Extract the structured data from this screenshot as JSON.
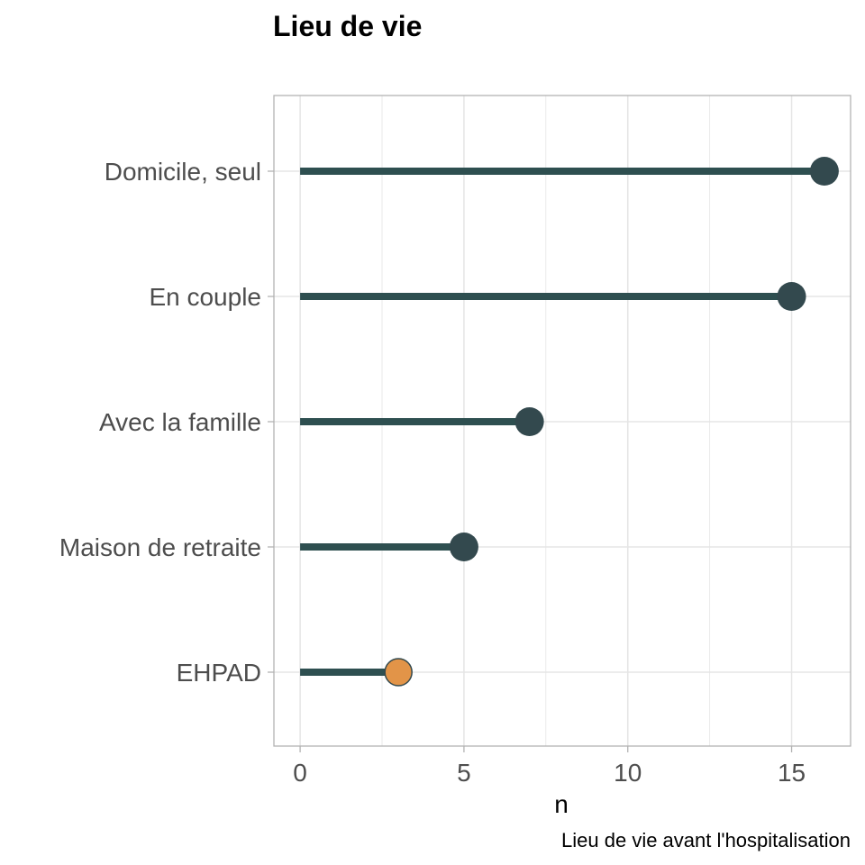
{
  "chart_data": {
    "type": "lollipop",
    "title": "Lieu de vie",
    "xlabel": "n",
    "ylabel": "",
    "caption": "Lieu de vie avant l'hospitalisation",
    "categories": [
      "Domicile, seul",
      "En couple",
      "Avec la famille",
      "Maison de retraite",
      "EHPAD"
    ],
    "values": [
      16,
      15,
      7,
      5,
      3
    ],
    "xlim": [
      -0.8,
      16.8
    ],
    "x_ticks": [
      {
        "value": 0,
        "label": "0"
      },
      {
        "value": 5,
        "label": "5"
      },
      {
        "value": 10,
        "label": "10"
      },
      {
        "value": 15,
        "label": "15"
      }
    ],
    "grid": true,
    "highlight_category": "EHPAD",
    "colors": {
      "stem": "#2e4f50",
      "point": "#33494e",
      "highlight": "#e29448",
      "grid": "#e5e5e5",
      "border": "#b3b3b3"
    }
  }
}
